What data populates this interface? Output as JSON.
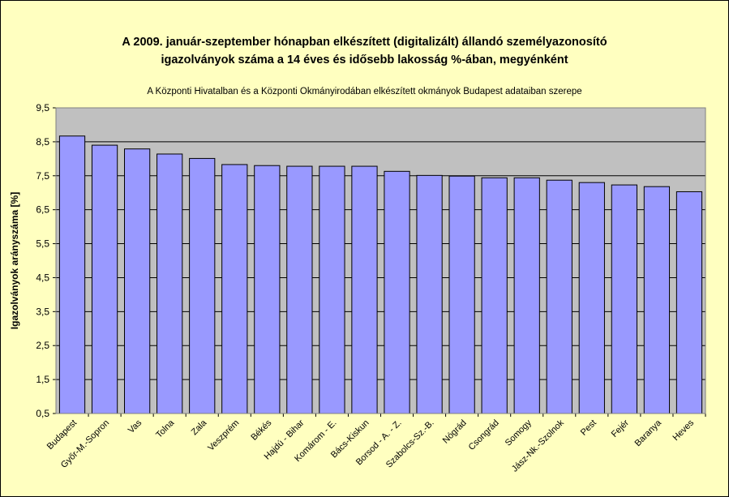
{
  "chart_data": {
    "type": "bar",
    "title_line1": "A 2009. január-szeptember hónapban elkészített (digitalizált) állandó személyazonosító",
    "title_line2": "igazolványok száma a 14 éves és idősebb lakosság %-ában, megyénként",
    "subtitle": "A  Központi Hivatalban és a Központi Okmányirodában elkészített okmányok Budapest adataiban szerepe",
    "ylabel": "Igazolványok arányszáma [%]",
    "xlabel": "",
    "ylim": [
      0.5,
      9.5
    ],
    "yticks": [
      "0,5",
      "1,5",
      "2,5",
      "3,5",
      "4,5",
      "5,5",
      "6,5",
      "7,5",
      "8,5",
      "9,5"
    ],
    "ytick_values": [
      0.5,
      1.5,
      2.5,
      3.5,
      4.5,
      5.5,
      6.5,
      7.5,
      8.5,
      9.5
    ],
    "categories": [
      "Budapest",
      "Győr-M.-Sopron",
      "Vas",
      "Tolna",
      "Zala",
      "Veszprém",
      "Békés",
      "Hajdú - Bihar",
      "Komárom - E.",
      "Bács-Kiskun",
      "Borsod - A. - Z.",
      "Szabolcs-Sz.-B.",
      "Nógrád",
      "Csongrád",
      "Somogy",
      "Jász-Nk.-Szolnok",
      "Pest",
      "Fejér",
      "Baranya",
      "Heves"
    ],
    "values": [
      8.67,
      8.4,
      8.29,
      8.14,
      8.01,
      7.83,
      7.8,
      7.78,
      7.78,
      7.78,
      7.63,
      7.51,
      7.49,
      7.44,
      7.44,
      7.37,
      7.3,
      7.23,
      7.18,
      7.03
    ],
    "grid": true,
    "legend": "none",
    "colors": {
      "bar_fill": "#9999ff",
      "bar_stroke": "#000000",
      "plot_bg": "#c0c0c0",
      "chart_bg": "#ffffc0",
      "grid": "#000000"
    }
  }
}
